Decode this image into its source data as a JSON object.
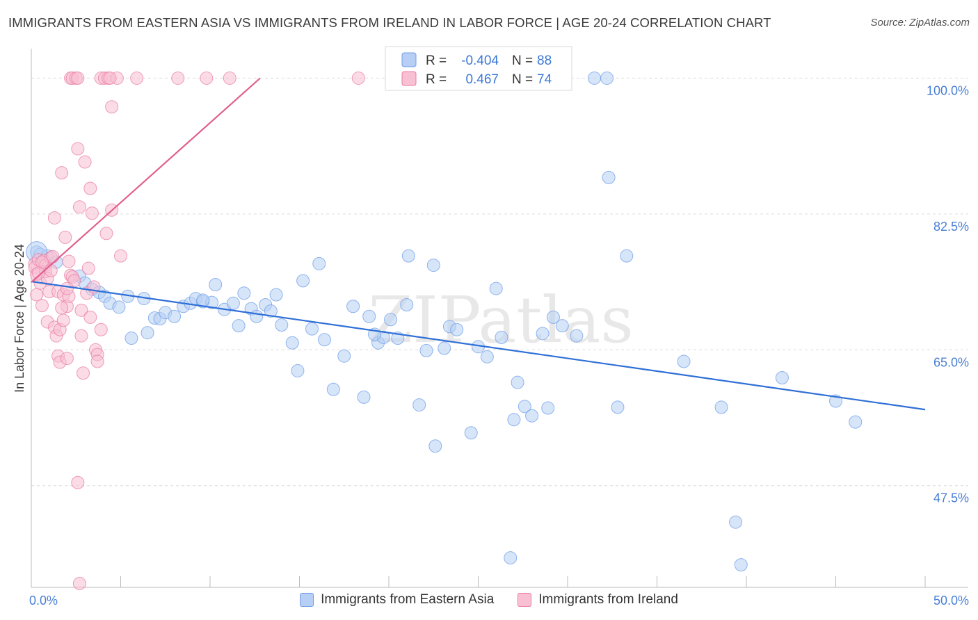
{
  "header": {
    "title": "IMMIGRANTS FROM EASTERN ASIA VS IMMIGRANTS FROM IRELAND IN LABOR FORCE | AGE 20-24 CORRELATION CHART",
    "source": "Source: ZipAtlas.com"
  },
  "watermark": "ZIPatlas",
  "chart_data": {
    "type": "scatter",
    "title": "IMMIGRANTS FROM EASTERN ASIA VS IMMIGRANTS FROM IRELAND IN LABOR FORCE | AGE 20-24 CORRELATION CHART",
    "xlabel": "",
    "ylabel": "In Labor Force | Age 20-24",
    "xlim": [
      0,
      50
    ],
    "ylim": [
      34.4,
      103.8
    ],
    "x_tick_labels": [
      "0.0%",
      "50.0%"
    ],
    "y_ticks": [
      {
        "value": 47.5,
        "label": "47.5%"
      },
      {
        "value": 65.0,
        "label": "65.0%"
      },
      {
        "value": 82.5,
        "label": "82.5%"
      },
      {
        "value": 100.0,
        "label": "100.0%"
      }
    ],
    "grid": true,
    "legend_position": "top-center",
    "series": [
      {
        "name": "Immigrants from Eastern Asia",
        "color": "#6f9ee8",
        "fill": "#b7cff4",
        "R": "-0.404",
        "N": "88",
        "trend": [
          [
            0,
            73.8
          ],
          [
            50,
            57.3
          ]
        ],
        "points": [
          [
            0.3,
            77.6
          ],
          [
            0.5,
            77.3
          ],
          [
            0.9,
            77.1
          ],
          [
            1.4,
            76.3
          ],
          [
            2.7,
            74.5
          ],
          [
            3.0,
            73.6
          ],
          [
            3.4,
            72.8
          ],
          [
            3.8,
            72.4
          ],
          [
            4.1,
            71.9
          ],
          [
            4.4,
            71.0
          ],
          [
            4.9,
            70.5
          ],
          [
            5.4,
            71.9
          ],
          [
            5.6,
            66.5
          ],
          [
            6.3,
            71.6
          ],
          [
            6.5,
            67.2
          ],
          [
            6.9,
            69.1
          ],
          [
            7.2,
            69.0
          ],
          [
            7.5,
            69.8
          ],
          [
            8.0,
            69.3
          ],
          [
            8.5,
            70.6
          ],
          [
            8.9,
            71.0
          ],
          [
            9.2,
            71.6
          ],
          [
            9.6,
            71.2
          ],
          [
            10.1,
            71.1
          ],
          [
            10.3,
            73.4
          ],
          [
            10.8,
            70.2
          ],
          [
            11.3,
            71.0
          ],
          [
            11.6,
            68.1
          ],
          [
            11.9,
            72.3
          ],
          [
            12.3,
            70.3
          ],
          [
            12.6,
            69.3
          ],
          [
            13.1,
            70.8
          ],
          [
            13.4,
            70.0
          ],
          [
            13.7,
            72.1
          ],
          [
            14.0,
            68.2
          ],
          [
            14.6,
            65.9
          ],
          [
            14.9,
            62.3
          ],
          [
            15.2,
            73.9
          ],
          [
            15.7,
            67.7
          ],
          [
            16.1,
            76.1
          ],
          [
            16.4,
            66.3
          ],
          [
            16.9,
            59.9
          ],
          [
            17.5,
            64.2
          ],
          [
            18.0,
            70.6
          ],
          [
            18.6,
            58.9
          ],
          [
            18.9,
            69.3
          ],
          [
            19.4,
            65.9
          ],
          [
            19.7,
            66.6
          ],
          [
            20.1,
            68.9
          ],
          [
            20.5,
            66.5
          ],
          [
            21.0,
            70.8
          ],
          [
            21.1,
            77.1
          ],
          [
            21.7,
            57.9
          ],
          [
            22.1,
            64.9
          ],
          [
            22.5,
            75.9
          ],
          [
            22.6,
            52.6
          ],
          [
            23.1,
            65.2
          ],
          [
            23.4,
            68.0
          ],
          [
            23.8,
            67.6
          ],
          [
            24.6,
            54.3
          ],
          [
            25.0,
            65.4
          ],
          [
            25.5,
            64.1
          ],
          [
            26.0,
            72.9
          ],
          [
            26.3,
            66.6
          ],
          [
            27.0,
            56.0
          ],
          [
            27.2,
            60.8
          ],
          [
            27.6,
            57.7
          ],
          [
            28.0,
            56.5
          ],
          [
            28.6,
            67.1
          ],
          [
            28.9,
            57.5
          ],
          [
            29.2,
            69.2
          ],
          [
            29.7,
            68.1
          ],
          [
            30.5,
            66.8
          ],
          [
            31.5,
            100.0
          ],
          [
            32.2,
            100.0
          ],
          [
            32.3,
            87.2
          ],
          [
            32.8,
            57.6
          ],
          [
            33.3,
            77.1
          ],
          [
            36.5,
            63.5
          ],
          [
            38.6,
            57.6
          ],
          [
            39.4,
            42.8
          ],
          [
            39.7,
            37.3
          ],
          [
            42.0,
            61.4
          ],
          [
            45.0,
            58.4
          ],
          [
            46.1,
            55.7
          ],
          [
            26.8,
            38.2
          ],
          [
            19.2,
            67.0
          ],
          [
            9.6,
            71.4
          ]
        ]
      },
      {
        "name": "Immigrants from Ireland",
        "color": "#e87ca4",
        "fill": "#f8c0d2",
        "R": "0.467",
        "N": "74",
        "trend": [
          [
            0,
            73.7
          ],
          [
            12.8,
            100.0
          ]
        ],
        "points": [
          [
            0.2,
            76.1
          ],
          [
            0.2,
            75.6
          ],
          [
            0.3,
            74.7
          ],
          [
            0.3,
            72.1
          ],
          [
            0.4,
            76.6
          ],
          [
            0.5,
            73.6
          ],
          [
            0.6,
            70.7
          ],
          [
            0.7,
            76.5
          ],
          [
            0.8,
            75.9
          ],
          [
            0.8,
            75.1
          ],
          [
            0.9,
            74.2
          ],
          [
            0.9,
            68.6
          ],
          [
            1.0,
            72.5
          ],
          [
            1.1,
            76.9
          ],
          [
            1.2,
            77.0
          ],
          [
            1.3,
            67.9
          ],
          [
            1.4,
            66.8
          ],
          [
            1.3,
            82.0
          ],
          [
            1.5,
            72.5
          ],
          [
            1.5,
            64.2
          ],
          [
            1.6,
            63.4
          ],
          [
            1.6,
            67.6
          ],
          [
            1.7,
            87.8
          ],
          [
            1.8,
            68.8
          ],
          [
            1.8,
            72.1
          ],
          [
            1.9,
            79.5
          ],
          [
            2.0,
            63.9
          ],
          [
            2.0,
            70.6
          ],
          [
            2.1,
            71.9
          ],
          [
            2.1,
            76.4
          ],
          [
            2.2,
            74.6
          ],
          [
            2.3,
            74.4
          ],
          [
            2.2,
            100.0
          ],
          [
            2.3,
            100.0
          ],
          [
            2.4,
            73.9
          ],
          [
            2.5,
            100.0
          ],
          [
            2.6,
            90.9
          ],
          [
            2.6,
            100.0
          ],
          [
            2.7,
            83.4
          ],
          [
            2.8,
            66.8
          ],
          [
            2.8,
            70.1
          ],
          [
            2.9,
            62.0
          ],
          [
            3.0,
            89.2
          ],
          [
            3.1,
            72.3
          ],
          [
            3.2,
            75.5
          ],
          [
            3.3,
            85.8
          ],
          [
            3.3,
            69.2
          ],
          [
            3.4,
            82.6
          ],
          [
            3.5,
            73.1
          ],
          [
            3.6,
            65.0
          ],
          [
            3.7,
            64.4
          ],
          [
            3.7,
            63.5
          ],
          [
            3.9,
            67.6
          ],
          [
            3.9,
            100.0
          ],
          [
            4.1,
            100.0
          ],
          [
            4.2,
            80.0
          ],
          [
            4.3,
            100.0
          ],
          [
            4.5,
            96.3
          ],
          [
            4.5,
            83.0
          ],
          [
            4.8,
            100.0
          ],
          [
            5.0,
            77.1
          ],
          [
            5.9,
            100.0
          ],
          [
            8.2,
            100.0
          ],
          [
            9.8,
            100.0
          ],
          [
            11.1,
            100.0
          ],
          [
            18.3,
            100.0
          ],
          [
            2.6,
            47.9
          ],
          [
            2.7,
            34.9
          ],
          [
            0.6,
            76.3
          ],
          [
            1.1,
            75.2
          ],
          [
            1.7,
            70.4
          ],
          [
            2.0,
            72.9
          ],
          [
            0.4,
            74.9
          ],
          [
            4.4,
            100.0
          ]
        ]
      }
    ]
  },
  "legend": {
    "r_label": "R =",
    "n_label": "N ="
  }
}
